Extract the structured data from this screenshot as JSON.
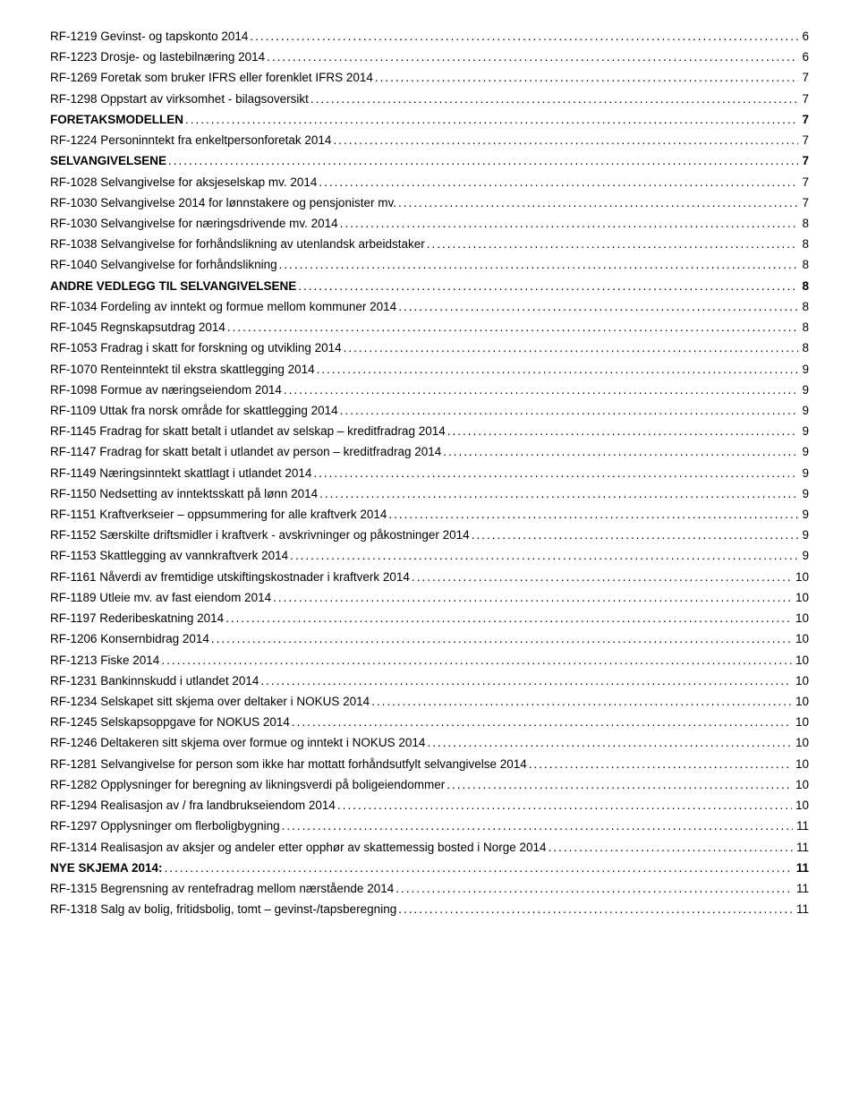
{
  "toc": [
    {
      "label": "RF-1219  Gevinst- og tapskonto 2014",
      "page": "6",
      "bold": false,
      "indent": false
    },
    {
      "label": "RF-1223  Drosje- og lastebilnæring 2014",
      "page": "6",
      "bold": false,
      "indent": false
    },
    {
      "label": "RF-1269   Foretak som bruker IFRS eller forenklet IFRS 2014",
      "page": "7",
      "bold": false,
      "indent": false
    },
    {
      "label": "RF-1298  Oppstart av virksomhet - bilagsoversikt",
      "page": "7",
      "bold": false,
      "indent": false
    },
    {
      "label": "FORETAKSMODELLEN",
      "page": "7",
      "bold": true,
      "indent": false
    },
    {
      "label": "RF-1224  Personinntekt fra enkeltpersonforetak  2014",
      "page": "7",
      "bold": false,
      "indent": false
    },
    {
      "label": "SELVANGIVELSENE",
      "page": "7",
      "bold": true,
      "indent": false
    },
    {
      "label": "RF-1028  Selvangivelse for aksjeselskap mv. 2014",
      "page": "7",
      "bold": false,
      "indent": false
    },
    {
      "label": "RF-1030  Selvangivelse 2014 for lønnstakere og pensjonister mv. ",
      "page": "7",
      "bold": false,
      "indent": false
    },
    {
      "label": "RF-1030  Selvangivelse for næringsdrivende mv. 2014",
      "page": "8",
      "bold": false,
      "indent": false
    },
    {
      "label": "RF-1038  Selvangivelse for forhåndslikning av utenlandsk arbeidstaker",
      "page": "8",
      "bold": false,
      "indent": false
    },
    {
      "label": "RF-1040  Selvangivelse for forhåndslikning",
      "page": "8",
      "bold": false,
      "indent": false
    },
    {
      "label": "ANDRE VEDLEGG TIL SELVANGIVELSENE",
      "page": "8",
      "bold": true,
      "indent": false
    },
    {
      "label": "RF-1034  Fordeling av inntekt og formue mellom kommuner 2014",
      "page": "8",
      "bold": false,
      "indent": false
    },
    {
      "label": "RF-1045  Regnskapsutdrag 2014",
      "page": "8",
      "bold": false,
      "indent": false
    },
    {
      "label": "RF-1053  Fradrag i skatt for forskning og utvikling 2014",
      "page": "8",
      "bold": false,
      "indent": false
    },
    {
      "label": "RF-1070  Renteinntekt til ekstra skattlegging 2014",
      "page": "9",
      "bold": false,
      "indent": false
    },
    {
      "label": "RF-1098  Formue av næringseiendom 2014",
      "page": "9",
      "bold": false,
      "indent": false
    },
    {
      "label": "RF-1109  Uttak fra norsk område for skattlegging 2014",
      "page": "9",
      "bold": false,
      "indent": false
    },
    {
      "label": "RF-1145  Fradrag for skatt betalt i utlandet av selskap – kreditfradrag 2014",
      "page": "9",
      "bold": false,
      "indent": false
    },
    {
      "label": "RF-1147 Fradrag for skatt betalt i utlandet av person – kreditfradrag 2014",
      "page": "9",
      "bold": false,
      "indent": false
    },
    {
      "label": "RF-1149  Næringsinntekt skattlagt i utlandet 2014",
      "page": "9",
      "bold": false,
      "indent": false
    },
    {
      "label": "RF-1150  Nedsetting av inntektsskatt på lønn 2014",
      "page": "9",
      "bold": false,
      "indent": false
    },
    {
      "label": "RF-1151  Kraftverkseier – oppsummering for alle kraftverk 2014",
      "page": "9",
      "bold": false,
      "indent": false
    },
    {
      "label": "RF-1152  Særskilte driftsmidler i kraftverk - avskrivninger og påkostninger 2014",
      "page": "9",
      "bold": false,
      "indent": false
    },
    {
      "label": "RF-1153  Skattlegging av vannkraftverk 2014",
      "page": "9",
      "bold": false,
      "indent": false
    },
    {
      "label": "RF-1161  Nåverdi av fremtidige utskiftingskostnader i kraftverk 2014",
      "page": "10",
      "bold": false,
      "indent": false
    },
    {
      "label": "RF-1189  Utleie mv. av fast eiendom 2014",
      "page": "10",
      "bold": false,
      "indent": false
    },
    {
      "label": "RF-1197  Rederibeskatning 2014",
      "page": "10",
      "bold": false,
      "indent": false
    },
    {
      "label": "RF-1206  Konsernbidrag 2014",
      "page": "10",
      "bold": false,
      "indent": false
    },
    {
      "label": "RF-1213  Fiske 2014",
      "page": "10",
      "bold": false,
      "indent": false
    },
    {
      "label": "RF-1231  Bankinnskudd i utlandet 2014",
      "page": "10",
      "bold": false,
      "indent": false
    },
    {
      "label": "RF-1234  Selskapet sitt skjema over deltaker i NOKUS 2014",
      "page": "10",
      "bold": false,
      "indent": false
    },
    {
      "label": "RF-1245  Selskapsoppgave for NOKUS 2014",
      "page": "10",
      "bold": false,
      "indent": false
    },
    {
      "label": "RF-1246  Deltakeren sitt skjema over formue og inntekt i NOKUS 2014",
      "page": "10",
      "bold": false,
      "indent": false
    },
    {
      "label": "RF-1281  Selvangivelse for person som ikke har mottatt forhåndsutfylt selvangivelse 2014",
      "page": "10",
      "bold": false,
      "indent": false
    },
    {
      "label": "RF-1282  Opplysninger for beregning av likningsverdi på boligeiendommer",
      "page": "10",
      "bold": false,
      "indent": false
    },
    {
      "label": "RF-1294  Realisasjon av / fra landbrukseiendom 2014",
      "page": "10",
      "bold": false,
      "indent": false
    },
    {
      "label": "RF-1297  Opplysninger om flerboligbygning",
      "page": "11",
      "bold": false,
      "indent": false
    },
    {
      "label": "RF-1314  Realisasjon av aksjer og andeler etter opphør av skattemessig bosted i Norge 2014",
      "page": "11",
      "bold": false,
      "indent": false
    },
    {
      "label": "NYE SKJEMA 2014:",
      "page": "11",
      "bold": true,
      "indent": false
    },
    {
      "label": "RF-1315   Begrensning av rentefradrag mellom nærstående 2014",
      "page": "11",
      "bold": false,
      "indent": false
    },
    {
      "label": "RF-1318   Salg av bolig, fritidsbolig, tomt – gevinst-/tapsberegning",
      "page": "11",
      "bold": false,
      "indent": false
    }
  ]
}
